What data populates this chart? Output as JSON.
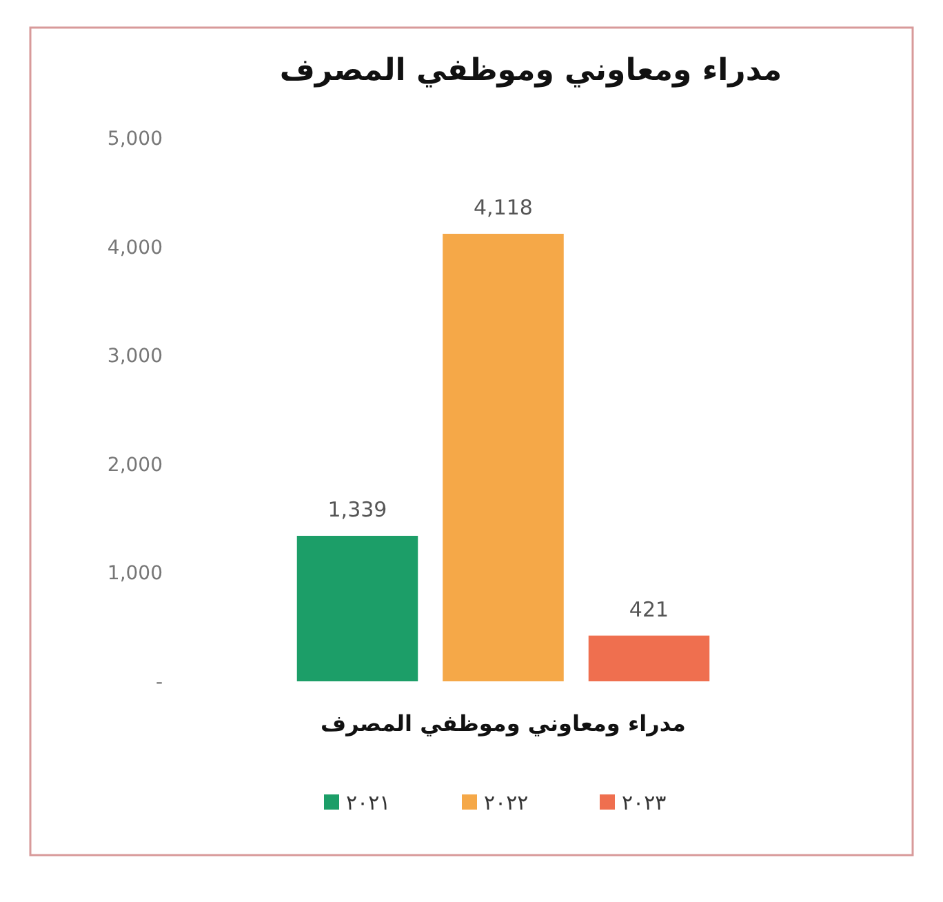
{
  "chart_data": {
    "type": "bar",
    "title": "مدراء ومعاوني وموظفي المصرف",
    "xlabel": "مدراء ومعاوني وموظفي المصرف",
    "categories": [
      null
    ],
    "series": [
      {
        "name": "٢٠٢١",
        "color": "#1c9e68",
        "values": [
          1339
        ],
        "value_labels": [
          "1,339"
        ]
      },
      {
        "name": "٢٠٢٢",
        "color": "#f5a848",
        "values": [
          4118
        ],
        "value_labels": [
          "4,118"
        ]
      },
      {
        "name": "٢٠٢٣",
        "color": "#ef6f4f",
        "values": [
          421
        ],
        "value_labels": [
          "421"
        ]
      }
    ],
    "ylim": [
      0,
      5000
    ],
    "yticks": [
      {
        "value": 0,
        "label": "-"
      },
      {
        "value": 1000,
        "label": "1,000"
      },
      {
        "value": 2000,
        "label": "2,000"
      },
      {
        "value": 3000,
        "label": "3,000"
      },
      {
        "value": 4000,
        "label": "4,000"
      },
      {
        "value": 5000,
        "label": "5,000"
      }
    ],
    "grid": false,
    "legend": "bottom"
  }
}
